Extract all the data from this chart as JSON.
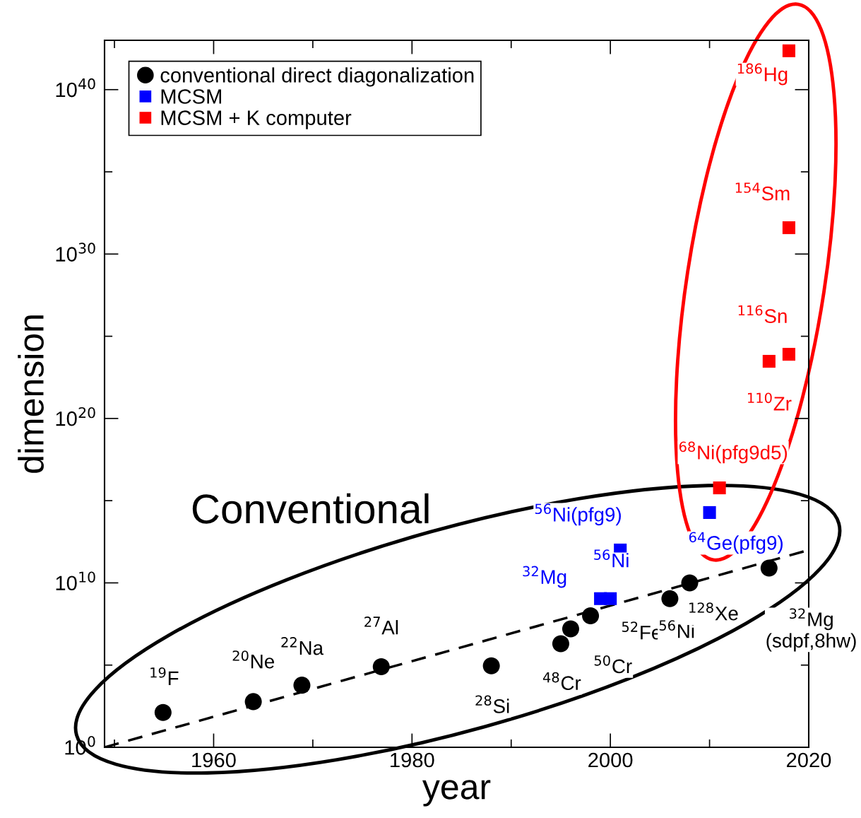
{
  "chart_data": {
    "type": "scatter",
    "xlabel": "year",
    "ylabel": "dimension",
    "log": "y",
    "xlim": [
      1949,
      2020
    ],
    "xticks": [
      {
        "value": 1950,
        "label": null
      },
      1960,
      {
        "value": 1970,
        "label": null
      },
      1980,
      {
        "value": 1990,
        "label": null
      },
      2000,
      {
        "value": 2010,
        "label": null
      },
      2020
    ],
    "ylim": [
      1,
      1e+43
    ],
    "yticks": [
      {
        "value": 1,
        "label": "10$^{0}$"
      },
      {
        "value": 100000.0,
        "label": null
      },
      {
        "value": 10000000000.0,
        "label": "10$^{10}$"
      },
      {
        "value": 1000000000000000.0,
        "label": null
      },
      {
        "value": 1e+20,
        "label": "10$^{20}$"
      },
      {
        "value": 1e+25,
        "label": null
      },
      {
        "value": 1e+30,
        "label": "10$^{30}$"
      },
      {
        "value": 1e+35,
        "label": null
      },
      {
        "value": 1e+40,
        "label": "10$^{40}$"
      }
    ],
    "grid": false,
    "legend": "top left",
    "series": [
      {
        "name": "conventional direct diagonalization",
        "marker": "circle",
        "color": "#000000",
        "x": [
          1954.9,
          1964.0,
          1968.9,
          1976.9,
          1988.0,
          1995.0,
          1996.0,
          1998.0,
          2006.0,
          2008.0,
          2016.0
        ],
        "values": [
          130.0,
          600.0,
          6000.0,
          80000.0,
          90000.0,
          2000000.0,
          16000000.0,
          100000000.0,
          1100000000.0,
          10000000000.0,
          80000000000.0
        ]
      },
      {
        "name": "MCSM",
        "marker": "square",
        "color": "#0000ff",
        "x": [
          1999,
          2000,
          2001,
          2010
        ],
        "values": [
          1100000000.0,
          1100000000.0,
          1000000000000.0,
          190000000000000.0
        ]
      },
      {
        "name": "MCSM + K computer",
        "marker": "square",
        "color": "#ff0000",
        "x": [
          2011,
          2016,
          2018,
          2018,
          2018
        ],
        "values": [
          6000000000000000.0,
          3e+23,
          8e+23,
          4e+31,
          2.3e+42
        ]
      },
      {
        "type": "line",
        "line_style": "dashed",
        "color": "#000000",
        "x": [
          1949,
          2020
        ],
        "values": [
          1,
          1000000000000.0
        ]
      }
    ],
    "annotations": [
      {
        "text": "$^{19}$F",
        "x": 1954.9,
        "y": 130.0
      },
      {
        "text": "$^{20}$Ne",
        "x": 1964.0,
        "y": 600.0
      },
      {
        "text": "$^{22}$Na",
        "x": 1968.9,
        "y": 6000.0
      },
      {
        "text": "$^{27}$Al",
        "x": 1976.9,
        "y": 80000.0
      },
      {
        "text": "$^{28}$Si",
        "x": 1988.0,
        "y": 90000.0
      },
      {
        "text": "$^{48}$Cr",
        "x": 1995.0,
        "y": 2000000.0
      },
      {
        "text": "$^{50}$Cr",
        "x": 1996.0,
        "y": 16000000.0
      },
      {
        "text": "$^{52}$Fe",
        "x": 1998.0,
        "y": 100000000.0
      },
      {
        "text": "$^{56}$Ni",
        "x": 2006.0,
        "y": 1100000000.0
      },
      {
        "text": "$^{128}$Xe",
        "x": 2008.0,
        "y": 10000000000.0
      },
      {
        "text": "$^{32}$Mg\n(sdpf,8hw)",
        "x": 2016.0,
        "y": 80000000000.0
      },
      {
        "text": "$^{32}$Mg",
        "x": 1999,
        "y": 1100000000.0
      },
      {
        "text": "$^{56}$Ni",
        "x": 2000,
        "y": 1100000000.0
      },
      {
        "text": "$^{56}$Ni(pfg9)",
        "x": 2001,
        "y": 1000000000000.0
      },
      {
        "text": "$^{64}$Ge(pfg9)",
        "x": 2010,
        "y": 190000000000000.0
      },
      {
        "text": "$^{68}$Ni(pfg9d5)",
        "x": 2011,
        "y": 6000000000000000.0
      },
      {
        "text": "$^{110}$Zr",
        "x": 2016,
        "y": 3e+23
      },
      {
        "text": "$^{116}$Sn",
        "x": 2018,
        "y": 8e+23
      },
      {
        "text": "$^{154}$Sm",
        "x": 2018,
        "y": 4e+31
      },
      {
        "text": "$^{186}$Hg",
        "x": 2018,
        "y": 2.3e+42
      },
      "Conventional"
    ]
  }
}
